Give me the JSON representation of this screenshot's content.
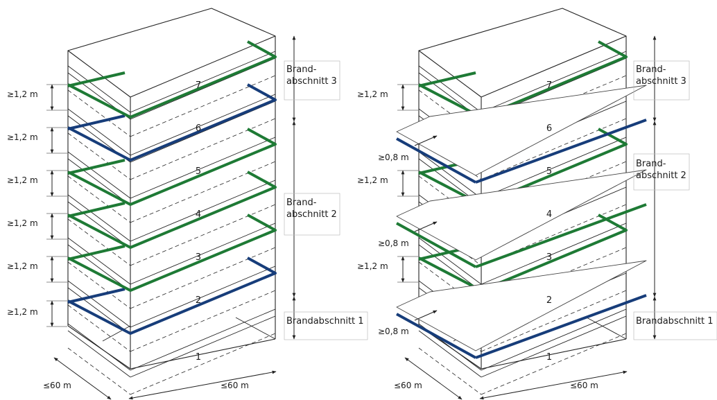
{
  "colors": {
    "green": "#1e7a35",
    "blue": "#173d7a",
    "line": "#222222",
    "thin": "#666666",
    "label_box": "#bbbbbb"
  },
  "left": {
    "floors": [
      "1",
      "2",
      "3",
      "4",
      "5",
      "6",
      "7"
    ],
    "barrier_floors": [
      {
        "floor": "2",
        "type": "fire-wall-ceiling",
        "color": "blue"
      },
      {
        "floor": "3",
        "type": "fire-ceiling",
        "color": "green"
      },
      {
        "floor": "4",
        "type": "fire-ceiling",
        "color": "green"
      },
      {
        "floor": "5",
        "type": "fire-ceiling",
        "color": "green"
      },
      {
        "floor": "6",
        "type": "fire-wall-ceiling",
        "color": "blue"
      },
      {
        "floor": "7",
        "type": "fire-ceiling",
        "color": "green"
      }
    ],
    "height_labels": [
      "≥1,2 m",
      "≥1,2 m",
      "≥1,2 m",
      "≥1,2 m",
      "≥1,2 m",
      "≥1,2 m"
    ],
    "sections": {
      "s3_line1": "Brand-",
      "s3_line2": "abschnitt 3",
      "s2_line1": "Brand-",
      "s2_line2": "abschnitt 2",
      "s1": "Brandabschnitt 1"
    },
    "width_labels": {
      "depth": "≤60 m",
      "width": "≤60 m"
    }
  },
  "right": {
    "floors": [
      "1",
      "2",
      "3",
      "4",
      "5",
      "6",
      "7"
    ],
    "height_labels": [
      "≥1,2 m",
      "≥1,2 m",
      "≥1,2 m"
    ],
    "projection_labels": [
      "≥0,8 m",
      "≥0,8 m",
      "≥0,8 m"
    ],
    "sections": {
      "s3_line1": "Brand-",
      "s3_line2": "abschnitt 3",
      "s2_line1": "Brand-",
      "s2_line2": "abschnitt 2",
      "s1": "Brandabschnitt 1"
    },
    "width_labels": {
      "depth": "≤60 m",
      "width": "≤60 m"
    }
  }
}
